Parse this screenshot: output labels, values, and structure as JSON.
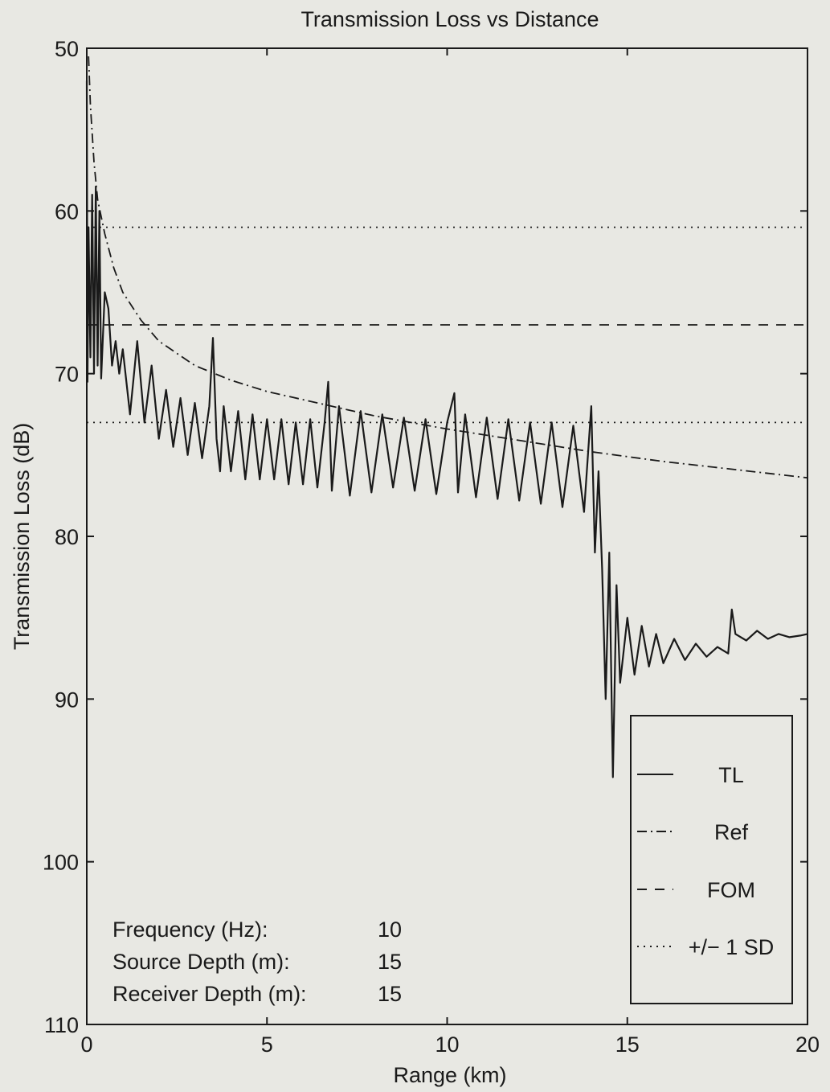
{
  "chart_data": {
    "type": "line",
    "title": "Transmission Loss vs Distance",
    "xlabel": "Range (km)",
    "ylabel": "Transmission Loss (dB)",
    "xlim": [
      0,
      20
    ],
    "ylim": [
      50,
      110
    ],
    "y_inverted": true,
    "xticks": [
      0,
      5,
      10,
      15,
      20
    ],
    "yticks": [
      50,
      60,
      70,
      80,
      90,
      100,
      110
    ],
    "grid": false,
    "legend_position": "bottom-right",
    "colors": {
      "line": "#1a1a1a",
      "background": "#e8e8e3"
    },
    "series": [
      {
        "name": "TL",
        "style": "solid",
        "x": [
          0.0,
          0.02,
          0.05,
          0.1,
          0.15,
          0.2,
          0.25,
          0.3,
          0.35,
          0.4,
          0.5,
          0.6,
          0.7,
          0.8,
          0.9,
          1.0,
          1.2,
          1.4,
          1.6,
          1.8,
          2.0,
          2.2,
          2.4,
          2.6,
          2.8,
          3.0,
          3.2,
          3.4,
          3.5,
          3.6,
          3.7,
          3.8,
          4.0,
          4.2,
          4.4,
          4.6,
          4.8,
          5.0,
          5.2,
          5.4,
          5.6,
          5.8,
          6.0,
          6.2,
          6.4,
          6.6,
          6.7,
          6.8,
          7.0,
          7.3,
          7.6,
          7.9,
          8.2,
          8.5,
          8.8,
          9.1,
          9.4,
          9.7,
          10.0,
          10.2,
          10.3,
          10.5,
          10.8,
          11.1,
          11.4,
          11.7,
          12.0,
          12.3,
          12.6,
          12.9,
          13.2,
          13.5,
          13.8,
          14.0,
          14.1,
          14.2,
          14.3,
          14.4,
          14.5,
          14.6,
          14.7,
          14.8,
          15.0,
          15.2,
          15.4,
          15.6,
          15.8,
          16.0,
          16.3,
          16.6,
          16.9,
          17.2,
          17.5,
          17.8,
          17.9,
          18.0,
          18.3,
          18.6,
          18.9,
          19.2,
          19.5,
          19.8,
          20.0
        ],
        "y": [
          52.0,
          70.5,
          61.0,
          69.0,
          59.0,
          70.0,
          58.5,
          69.5,
          60.0,
          70.3,
          65.0,
          66.0,
          69.5,
          68.0,
          70.0,
          68.5,
          72.5,
          68.0,
          73.0,
          69.5,
          74.0,
          71.0,
          74.5,
          71.5,
          75.0,
          71.8,
          75.2,
          72.0,
          67.8,
          74.0,
          76.0,
          72.0,
          76.0,
          72.3,
          76.5,
          72.5,
          76.5,
          72.8,
          76.5,
          72.8,
          76.8,
          73.0,
          76.8,
          72.8,
          77.0,
          73.0,
          70.5,
          77.2,
          72.0,
          77.5,
          72.3,
          77.3,
          72.5,
          77.0,
          72.7,
          77.2,
          72.8,
          77.4,
          73.0,
          71.2,
          77.3,
          72.5,
          77.6,
          72.7,
          77.7,
          72.8,
          77.8,
          73.0,
          78.0,
          73.0,
          78.2,
          73.2,
          78.5,
          72.0,
          81.0,
          76.0,
          82.0,
          90.0,
          81.0,
          94.8,
          83.0,
          89.0,
          85.0,
          88.5,
          85.5,
          88.0,
          86.0,
          87.8,
          86.3,
          87.6,
          86.6,
          87.4,
          86.8,
          87.2,
          84.5,
          86.0,
          86.4,
          85.8,
          86.3,
          86.0,
          86.2,
          86.1,
          86.0
        ]
      },
      {
        "name": "Ref",
        "style": "dashdot",
        "x": [
          0.05,
          0.1,
          0.2,
          0.3,
          0.5,
          0.75,
          1.0,
          1.5,
          2.0,
          3.0,
          4.0,
          5.0,
          6.0,
          7.0,
          8.0,
          10.0,
          12.0,
          14.0,
          16.0,
          18.0,
          20.0
        ],
        "y": [
          50.5,
          53.5,
          57.0,
          59.3,
          61.4,
          63.5,
          65.0,
          66.7,
          68.0,
          69.5,
          70.4,
          71.1,
          71.6,
          72.1,
          72.6,
          73.4,
          74.1,
          74.8,
          75.4,
          75.9,
          76.4
        ]
      },
      {
        "name": "FOM",
        "style": "dashed",
        "x": [
          0,
          20
        ],
        "y": [
          67.0,
          67.0
        ]
      },
      {
        "name": "+/− 1 SD",
        "style": "dotted",
        "x": [
          0,
          20
        ],
        "y": [
          61.0,
          61.0
        ]
      },
      {
        "style": "dotted",
        "x": [
          0,
          20
        ],
        "y": [
          73.0,
          73.0
        ]
      }
    ],
    "annotations": [
      {
        "label": "Frequency (Hz):",
        "value": "10"
      },
      {
        "label": "Source Depth (m):",
        "value": "15"
      },
      {
        "label": "Receiver Depth (m):",
        "value": "15"
      }
    ]
  }
}
